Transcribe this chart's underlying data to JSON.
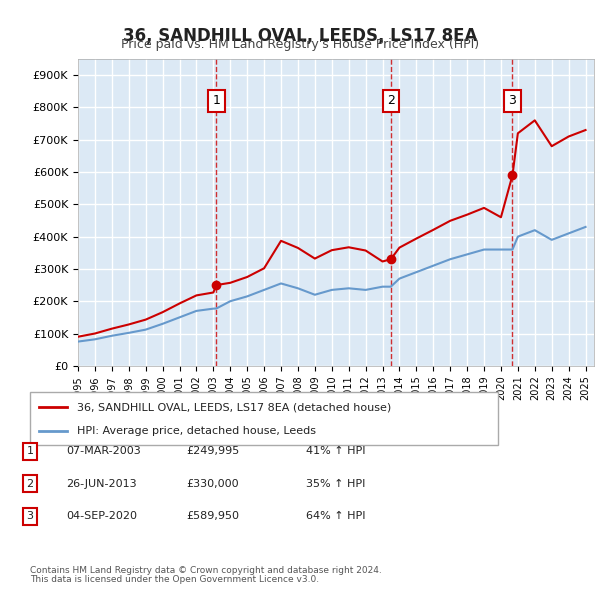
{
  "title": "36, SANDHILL OVAL, LEEDS, LS17 8EA",
  "subtitle": "Price paid vs. HM Land Registry's House Price Index (HPI)",
  "legend_label_red": "36, SANDHILL OVAL, LEEDS, LS17 8EA (detached house)",
  "legend_label_blue": "HPI: Average price, detached house, Leeds",
  "footer1": "Contains HM Land Registry data © Crown copyright and database right 2024.",
  "footer2": "This data is licensed under the Open Government Licence v3.0.",
  "transactions": [
    {
      "num": 1,
      "date": "07-MAR-2003",
      "price": "£249,995",
      "hpi": "41% ↑ HPI",
      "x": 2003.18
    },
    {
      "num": 2,
      "date": "26-JUN-2013",
      "price": "£330,000",
      "hpi": "35% ↑ HPI",
      "x": 2013.49
    },
    {
      "num": 3,
      "date": "04-SEP-2020",
      "price": "£589,950",
      "hpi": "64% ↑ HPI",
      "x": 2020.68
    }
  ],
  "transaction_values": [
    249995,
    330000,
    589950
  ],
  "ylim": [
    0,
    950000
  ],
  "xlim_start": 1995,
  "xlim_end": 2025.5,
  "background_color": "#dce9f5",
  "plot_bg": "#dce9f5",
  "red_color": "#cc0000",
  "blue_color": "#6699cc",
  "grid_color": "#ffffff",
  "hpi_line_data_x": [
    1995,
    1996,
    1997,
    1998,
    1999,
    2000,
    2001,
    2002,
    2003,
    2003.18,
    2004,
    2005,
    2006,
    2007,
    2008,
    2009,
    2010,
    2011,
    2012,
    2013,
    2013.49,
    2014,
    2015,
    2016,
    2017,
    2018,
    2019,
    2020,
    2020.68,
    2021,
    2022,
    2023,
    2024,
    2025
  ],
  "hpi_line_data_y": [
    75000,
    82000,
    93000,
    102000,
    112000,
    130000,
    150000,
    170000,
    177000,
    177500,
    200000,
    215000,
    235000,
    255000,
    240000,
    220000,
    235000,
    240000,
    235000,
    245000,
    245000,
    270000,
    290000,
    310000,
    330000,
    345000,
    360000,
    360000,
    360000,
    400000,
    420000,
    390000,
    410000,
    430000
  ],
  "red_line_data_x": [
    1995,
    1996,
    1997,
    1998,
    1999,
    2000,
    2001,
    2002,
    2003,
    2003.18,
    2004,
    2005,
    2006,
    2007,
    2008,
    2009,
    2010,
    2011,
    2012,
    2013,
    2013.49,
    2014,
    2015,
    2016,
    2017,
    2018,
    2019,
    2020,
    2020.68,
    2021,
    2022,
    2023,
    2024,
    2025
  ],
  "red_line_data_y": [
    90000,
    100000,
    115000,
    128000,
    143000,
    166000,
    193000,
    218000,
    227000,
    249995,
    257000,
    275000,
    302000,
    387000,
    365000,
    332000,
    358000,
    367000,
    357000,
    323000,
    330000,
    366000,
    394000,
    421000,
    449000,
    468000,
    489000,
    460000,
    589950,
    720000,
    760000,
    680000,
    710000,
    730000
  ]
}
